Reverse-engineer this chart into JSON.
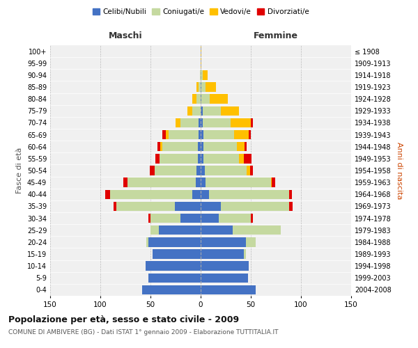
{
  "age_groups": [
    "0-4",
    "5-9",
    "10-14",
    "15-19",
    "20-24",
    "25-29",
    "30-34",
    "35-39",
    "40-44",
    "45-49",
    "50-54",
    "55-59",
    "60-64",
    "65-69",
    "70-74",
    "75-79",
    "80-84",
    "85-89",
    "90-94",
    "95-99",
    "100+"
  ],
  "birth_years": [
    "2004-2008",
    "1999-2003",
    "1994-1998",
    "1989-1993",
    "1984-1988",
    "1979-1983",
    "1974-1978",
    "1969-1973",
    "1964-1968",
    "1959-1963",
    "1954-1958",
    "1949-1953",
    "1944-1948",
    "1939-1943",
    "1934-1938",
    "1929-1933",
    "1924-1928",
    "1919-1923",
    "1914-1918",
    "1909-1913",
    "≤ 1908"
  ],
  "male_celibi": [
    58,
    52,
    55,
    48,
    52,
    42,
    20,
    26,
    8,
    5,
    4,
    3,
    3,
    2,
    2,
    0,
    0,
    0,
    0,
    0,
    0
  ],
  "male_coniugati": [
    0,
    0,
    0,
    0,
    2,
    8,
    30,
    58,
    82,
    68,
    42,
    38,
    35,
    30,
    18,
    8,
    4,
    2,
    1,
    0,
    0
  ],
  "male_vedovi": [
    0,
    0,
    0,
    0,
    0,
    0,
    0,
    0,
    0,
    0,
    0,
    0,
    2,
    3,
    5,
    5,
    4,
    2,
    0,
    0,
    0
  ],
  "male_divorziati": [
    0,
    0,
    0,
    0,
    0,
    0,
    2,
    3,
    5,
    4,
    5,
    4,
    3,
    3,
    0,
    0,
    0,
    0,
    0,
    0,
    0
  ],
  "female_celibi": [
    55,
    47,
    48,
    43,
    45,
    32,
    18,
    20,
    8,
    5,
    4,
    3,
    3,
    3,
    2,
    2,
    1,
    1,
    0,
    0,
    0
  ],
  "female_coniugati": [
    0,
    0,
    0,
    2,
    10,
    48,
    32,
    68,
    80,
    65,
    42,
    35,
    33,
    30,
    28,
    18,
    8,
    4,
    2,
    0,
    0
  ],
  "female_vedovi": [
    0,
    0,
    0,
    0,
    0,
    0,
    0,
    0,
    0,
    1,
    3,
    5,
    8,
    15,
    20,
    18,
    18,
    10,
    5,
    1,
    1
  ],
  "female_divorziati": [
    0,
    0,
    0,
    0,
    0,
    0,
    2,
    4,
    3,
    3,
    3,
    8,
    2,
    2,
    2,
    0,
    0,
    0,
    0,
    0,
    0
  ],
  "color_celibi": "#4472c4",
  "color_coniugati": "#c5d9a0",
  "color_vedovi": "#ffc000",
  "color_divorziati": "#e00000",
  "xlim": 150,
  "title": "Popolazione per età, sesso e stato civile - 2009",
  "subtitle": "COMUNE DI AMBIVERE (BG) - Dati ISTAT 1° gennaio 2009 - Elaborazione TUTTITALIA.IT",
  "ylabel_left": "Fasce di età",
  "ylabel_right": "Anni di nascita",
  "xlabel_male": "Maschi",
  "xlabel_female": "Femmine",
  "bg_color": "#f0f0f0"
}
